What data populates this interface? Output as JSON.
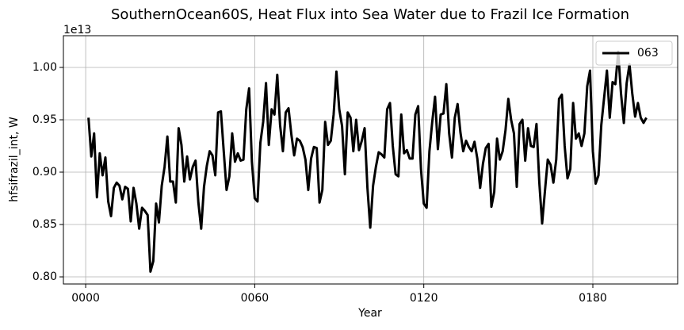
{
  "chart_data": {
    "type": "line",
    "title": "SouthernOcean60S, Heat Flux into Sea Water due to Frazil Ice Formation",
    "x_label": "Year",
    "y_label": "hfsifrazil_int, W",
    "y_offset_label": "1e13",
    "x": [
      1,
      2,
      3,
      4,
      5,
      6,
      7,
      8,
      9,
      10,
      11,
      12,
      13,
      14,
      15,
      16,
      17,
      18,
      19,
      20,
      21,
      22,
      23,
      24,
      25,
      26,
      27,
      28,
      29,
      30,
      31,
      32,
      33,
      34,
      35,
      36,
      37,
      38,
      39,
      40,
      41,
      42,
      43,
      44,
      45,
      46,
      47,
      48,
      49,
      50,
      51,
      52,
      53,
      54,
      55,
      56,
      57,
      58,
      59,
      60,
      61,
      62,
      63,
      64,
      65,
      66,
      67,
      68,
      69,
      70,
      71,
      72,
      73,
      74,
      75,
      76,
      77,
      78,
      79,
      80,
      81,
      82,
      83,
      84,
      85,
      86,
      87,
      88,
      89,
      90,
      91,
      92,
      93,
      94,
      95,
      96,
      97,
      98,
      99,
      100,
      101,
      102,
      103,
      104,
      105,
      106,
      107,
      108,
      109,
      110,
      111,
      112,
      113,
      114,
      115,
      116,
      117,
      118,
      119,
      120,
      121,
      122,
      123,
      124,
      125,
      126,
      127,
      128,
      129,
      130,
      131,
      132,
      133,
      134,
      135,
      136,
      137,
      138,
      139,
      140,
      141,
      142,
      143,
      144,
      145,
      146,
      147,
      148,
      149,
      150,
      151,
      152,
      153,
      154,
      155,
      156,
      157,
      158,
      159,
      160,
      161,
      162,
      163,
      164,
      165,
      166,
      167,
      168,
      169,
      170,
      171,
      172,
      173,
      174,
      175,
      176,
      177,
      178,
      179,
      180,
      181,
      182,
      183,
      184,
      185,
      186,
      187,
      188,
      189,
      190,
      191,
      192,
      193,
      194,
      195,
      196,
      197,
      198,
      199
    ],
    "series": [
      {
        "name": "063",
        "color": "#000000",
        "values": [
          0.952,
          0.915,
          0.937,
          0.876,
          0.918,
          0.897,
          0.914,
          0.872,
          0.858,
          0.885,
          0.89,
          0.887,
          0.874,
          0.886,
          0.884,
          0.853,
          0.885,
          0.87,
          0.846,
          0.866,
          0.863,
          0.859,
          0.805,
          0.815,
          0.87,
          0.852,
          0.887,
          0.905,
          0.934,
          0.891,
          0.891,
          0.871,
          0.942,
          0.926,
          0.891,
          0.915,
          0.893,
          0.905,
          0.911,
          0.871,
          0.846,
          0.886,
          0.906,
          0.92,
          0.916,
          0.897,
          0.957,
          0.958,
          0.92,
          0.883,
          0.896,
          0.937,
          0.91,
          0.918,
          0.911,
          0.912,
          0.96,
          0.98,
          0.91,
          0.875,
          0.872,
          0.928,
          0.948,
          0.985,
          0.926,
          0.96,
          0.955,
          0.993,
          0.945,
          0.92,
          0.957,
          0.961,
          0.936,
          0.916,
          0.932,
          0.93,
          0.924,
          0.912,
          0.883,
          0.913,
          0.924,
          0.923,
          0.871,
          0.883,
          0.948,
          0.926,
          0.93,
          0.955,
          0.996,
          0.96,
          0.944,
          0.898,
          0.957,
          0.952,
          0.92,
          0.95,
          0.921,
          0.93,
          0.942,
          0.885,
          0.847,
          0.887,
          0.905,
          0.919,
          0.917,
          0.914,
          0.96,
          0.966,
          0.925,
          0.898,
          0.896,
          0.955,
          0.918,
          0.921,
          0.913,
          0.913,
          0.955,
          0.963,
          0.903,
          0.87,
          0.866,
          0.92,
          0.948,
          0.972,
          0.922,
          0.955,
          0.956,
          0.984,
          0.937,
          0.914,
          0.952,
          0.965,
          0.938,
          0.92,
          0.93,
          0.924,
          0.92,
          0.929,
          0.913,
          0.885,
          0.908,
          0.923,
          0.927,
          0.867,
          0.881,
          0.932,
          0.912,
          0.92,
          0.94,
          0.97,
          0.95,
          0.937,
          0.886,
          0.946,
          0.95,
          0.911,
          0.942,
          0.925,
          0.924,
          0.946,
          0.89,
          0.851,
          0.882,
          0.912,
          0.907,
          0.89,
          0.912,
          0.97,
          0.974,
          0.925,
          0.894,
          0.903,
          0.966,
          0.932,
          0.937,
          0.925,
          0.937,
          0.982,
          0.997,
          0.92,
          0.889,
          0.897,
          0.945,
          0.971,
          0.997,
          0.952,
          0.986,
          0.984,
          1.015,
          0.975,
          0.947,
          0.985,
          1.003,
          0.975,
          0.953,
          0.966,
          0.952,
          0.947,
          0.952
        ]
      }
    ],
    "xlim": [
      -7.9,
      210.1
    ],
    "xticks": [
      {
        "value": 0,
        "label": "0000"
      },
      {
        "value": 60,
        "label": "0060"
      },
      {
        "value": 120,
        "label": "0120"
      },
      {
        "value": 180,
        "label": "0180"
      }
    ],
    "ylim": [
      0.7932,
      1.0303
    ],
    "yticks": [
      {
        "value": 0.8,
        "label": "0.80"
      },
      0.85,
      {
        "value": 0.9,
        "label": "0.90"
      },
      0.95,
      {
        "value": 1.0,
        "label": "1.00"
      }
    ],
    "grid": true,
    "legend": "upper right"
  }
}
